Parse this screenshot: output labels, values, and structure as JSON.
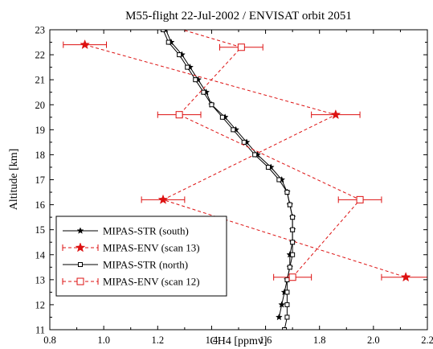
{
  "chart_data": {
    "type": "line",
    "title": "M55-flight 22-Jul-2002 / ENVISAT orbit 2051",
    "xlabel": "CH4 [ppmv]",
    "ylabel": "Altitude [km]",
    "xlim": [
      0.8,
      2.2
    ],
    "ylim": [
      11,
      23
    ],
    "xticks": [
      "0.8",
      "1.0",
      "1.2",
      "1.4",
      "1.6",
      "1.8",
      "2.0",
      "2.2"
    ],
    "yticks": [
      "11",
      "12",
      "13",
      "14",
      "15",
      "16",
      "17",
      "18",
      "19",
      "20",
      "21",
      "22",
      "23"
    ],
    "legend_position": "bottom-left",
    "series": [
      {
        "name": "MIPAS-STR (south)",
        "color": "#000000",
        "marker": "star",
        "linestyle": "solid",
        "x": [
          1.23,
          1.25,
          1.29,
          1.32,
          1.35,
          1.38,
          1.4,
          1.45,
          1.49,
          1.53,
          1.57,
          1.62,
          1.66,
          1.68,
          1.69,
          1.7,
          1.7,
          1.7,
          1.69,
          1.69,
          1.68,
          1.67,
          1.66,
          1.65
        ],
        "y": [
          23.0,
          22.5,
          22.0,
          21.5,
          21.0,
          20.5,
          20.0,
          19.5,
          19.0,
          18.5,
          18.0,
          17.5,
          17.0,
          16.5,
          16.0,
          15.5,
          15.0,
          14.5,
          14.0,
          13.5,
          13.0,
          12.5,
          12.0,
          11.5
        ]
      },
      {
        "name": "MIPAS-ENV (scan 13)",
        "color": "#dd1111",
        "marker": "star",
        "linestyle": "dashed",
        "x": [
          0.93,
          1.86,
          1.22,
          2.12
        ],
        "y": [
          22.4,
          19.6,
          16.2,
          13.1
        ],
        "xerr": [
          0.08,
          0.09,
          0.08,
          0.09
        ]
      },
      {
        "name": "MIPAS-STR (north)",
        "color": "#000000",
        "marker": "square",
        "linestyle": "solid",
        "x": [
          1.22,
          1.24,
          1.28,
          1.31,
          1.34,
          1.37,
          1.4,
          1.44,
          1.48,
          1.52,
          1.56,
          1.61,
          1.65,
          1.68,
          1.69,
          1.7,
          1.7,
          1.7,
          1.7,
          1.69,
          1.68,
          1.68,
          1.68,
          1.68,
          1.67
        ],
        "y": [
          23.0,
          22.5,
          22.0,
          21.5,
          21.0,
          20.5,
          20.0,
          19.5,
          19.0,
          18.5,
          18.0,
          17.5,
          17.0,
          16.5,
          16.0,
          15.5,
          15.0,
          14.5,
          14.0,
          13.5,
          13.0,
          12.5,
          12.0,
          11.5,
          11.0
        ]
      },
      {
        "name": "MIPAS-ENV (scan 12)",
        "color": "#dd1111",
        "marker": "square",
        "linestyle": "dashed",
        "x": [
          1.2,
          1.51,
          1.28,
          1.95,
          1.7
        ],
        "y": [
          23.3,
          22.3,
          19.6,
          16.2,
          13.1
        ],
        "xerr": [
          0.08,
          0.08,
          0.08,
          0.08,
          0.07
        ]
      }
    ]
  }
}
